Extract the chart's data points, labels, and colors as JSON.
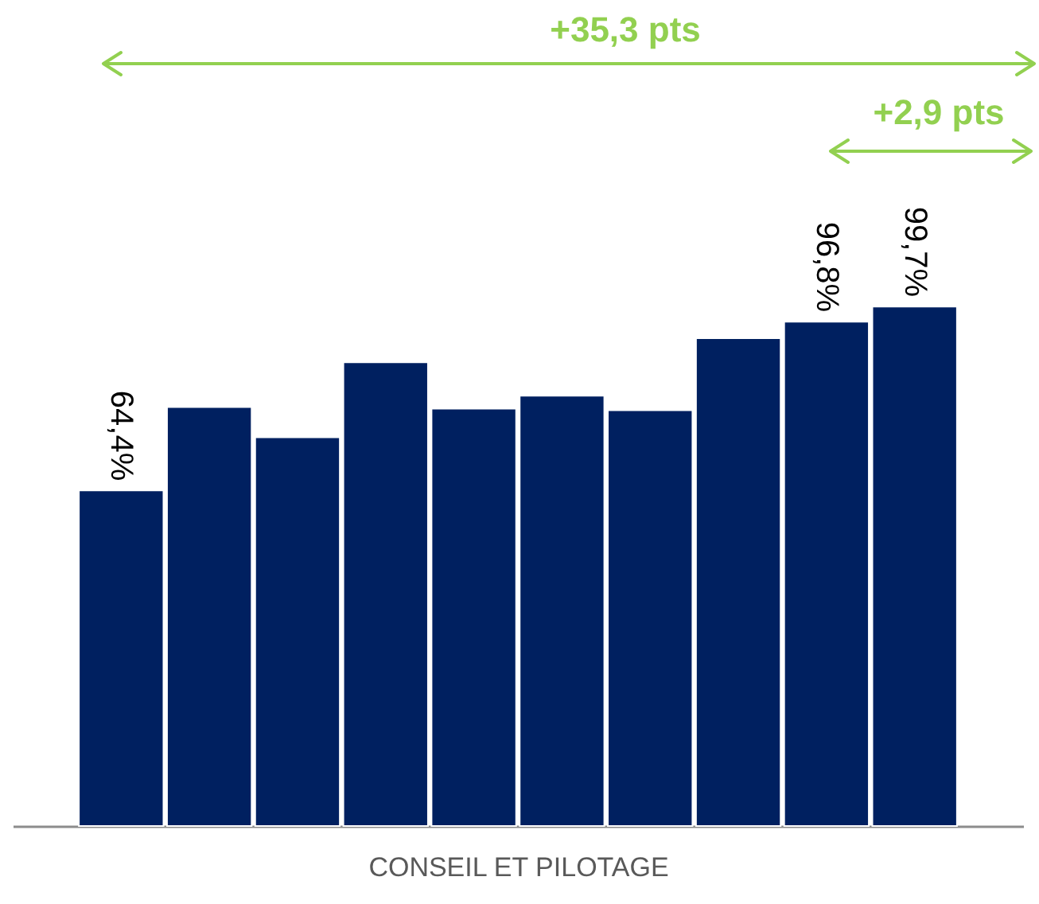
{
  "chart_data": {
    "type": "bar",
    "xlabel": "CONSEIL ET PILOTAGE",
    "categories": [
      null,
      null,
      null,
      null,
      null,
      null,
      null,
      null,
      null,
      null
    ],
    "values": [
      64.4,
      80.4,
      74.6,
      89.0,
      80.1,
      82.6,
      79.8,
      93.6,
      96.8,
      99.7
    ],
    "value_labels": [
      "64,4%",
      null,
      null,
      null,
      null,
      null,
      null,
      null,
      "96,8%",
      "99,7%"
    ],
    "color": "#002060",
    "annotations": [
      "+35,3 pts",
      "+2,9 pts"
    ]
  }
}
